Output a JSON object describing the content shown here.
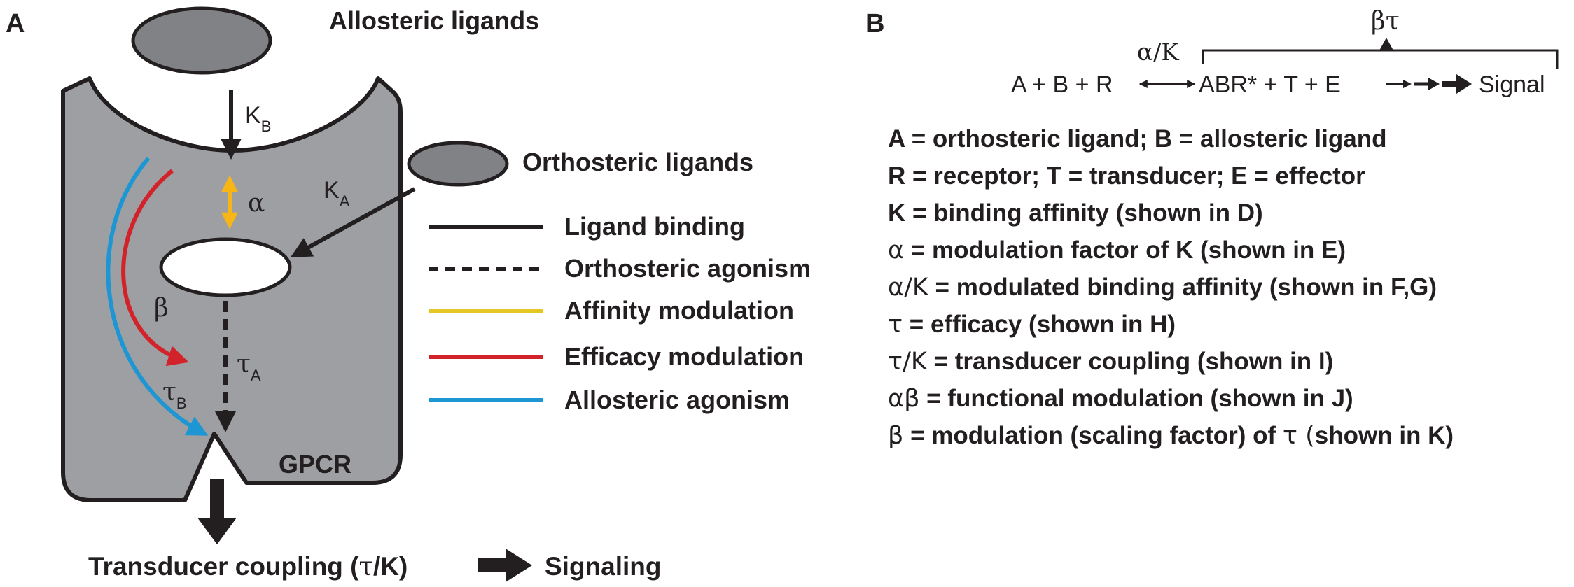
{
  "panel_a": {
    "label": "A",
    "allosteric_ligands": "Allosteric ligands",
    "orthosteric_ligands": "Orthosteric ligands",
    "kb_base": "K",
    "kb_sub": "B",
    "ka_base": "K",
    "ka_sub": "A",
    "alpha": "α",
    "beta": "β",
    "tau_a_base": "τ",
    "tau_a_sub": "A",
    "tau_b_base": "τ",
    "tau_b_sub": "B",
    "gpcr": "GPCR",
    "transducer_coupling_pre": "Transducer coupling (",
    "transducer_coupling_sym": "τ",
    "transducer_coupling_post": "/K)",
    "signaling": "Signaling",
    "legend": [
      {
        "label": "Ligand binding",
        "color": "#231f20",
        "style": "solid"
      },
      {
        "label": "Orthosteric agonism",
        "color": "#231f20",
        "style": "dashed"
      },
      {
        "label": "Affinity modulation",
        "color": "#e3c823",
        "style": "solid"
      },
      {
        "label": "Efficacy modulation",
        "color": "#d2232a",
        "style": "solid"
      },
      {
        "label": "Allosteric agonism",
        "color": "#1e96d3",
        "style": "solid"
      }
    ]
  },
  "panel_b": {
    "label": "B",
    "beta_tau": "βτ",
    "alpha_k": "α/K",
    "left_side": "A + B + R",
    "right_side": "ABR* + T + E",
    "signal": "Signal",
    "definitions": [
      {
        "sym": "",
        "text": "A = orthosteric ligand; B = allosteric ligand",
        "tail": ""
      },
      {
        "sym": "",
        "text": "R = receptor; T = transducer; E = effector",
        "tail": ""
      },
      {
        "sym": "",
        "text": "K = binding affinity (shown in D)",
        "tail": ""
      },
      {
        "sym": "α",
        "text": " = modulation factor of K (shown in E)",
        "tail": ""
      },
      {
        "sym": "α/K",
        "text": " = modulated binding affinity (shown in F,G)",
        "tail": ""
      },
      {
        "sym": "τ",
        "text": " = efficacy (shown in H)",
        "tail": ""
      },
      {
        "sym": "τ/K",
        "text": " = transducer coupling (shown in I)",
        "tail": ""
      },
      {
        "sym": "αβ",
        "text": " = functional modulation (shown in J)",
        "tail": ""
      },
      {
        "sym": "β",
        "text": " = modulation (scaling factor) of ",
        "tail": "τ"
      },
      {
        "sym": "",
        "text": "",
        "tail": ""
      }
    ],
    "last_def_end": "(shown in K)"
  },
  "colors": {
    "receptor_fill": "#9d9fa2",
    "ligand_fill": "#808285",
    "ink": "#231f20",
    "affinity": "#f7b516",
    "efficacy": "#d2232a",
    "allosteric": "#1e96d3"
  }
}
